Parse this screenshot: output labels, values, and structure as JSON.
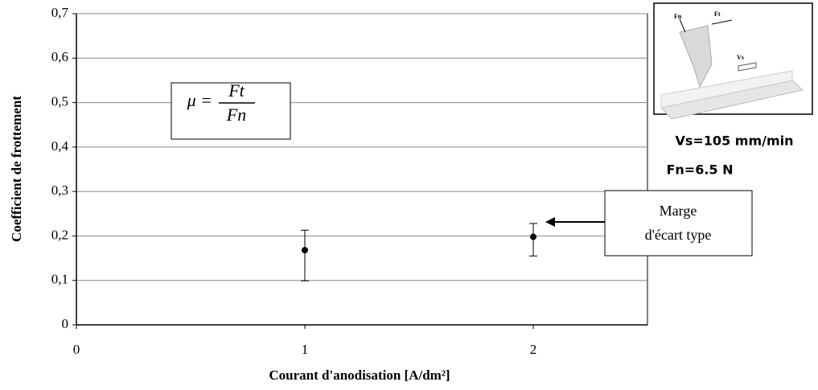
{
  "chart_data": {
    "type": "scatter",
    "xlabel": "Courant d'anodisation [A/dm²]",
    "ylabel": "Coefficient  de frottement",
    "x": [
      1,
      2
    ],
    "values": [
      0.168,
      0.198
    ],
    "error_low": [
      0.099,
      0.155
    ],
    "error_high": [
      0.213,
      0.228
    ],
    "color": "#000000",
    "xlim": [
      0,
      2.5
    ],
    "xticks": [
      0,
      1,
      2
    ],
    "ylim": [
      0,
      0.7
    ],
    "yticks": [
      0,
      {
        "value": 0.1,
        "label": "0,1"
      },
      {
        "value": 0.2,
        "label": "0,2"
      },
      {
        "value": 0.3,
        "label": "0,3"
      },
      {
        "value": 0.4,
        "label": "0,4"
      },
      {
        "value": 0.5,
        "label": "0,5"
      },
      {
        "value": 0.6,
        "label": "0,6"
      },
      {
        "value": 0.7,
        "label": "0,7"
      }
    ],
    "grid": true,
    "annotations": {
      "formula": {
        "lhs": "μ =",
        "numerator": "Ft",
        "denominator": "Fn"
      },
      "error_note": [
        "Marge",
        "d'écart type"
      ],
      "speed": "Vs=105 mm/min",
      "force": "Fn=6.5 N",
      "inset_labels": {
        "fn": "Fn",
        "ft": "Ft",
        "vs": "Vs"
      }
    }
  }
}
